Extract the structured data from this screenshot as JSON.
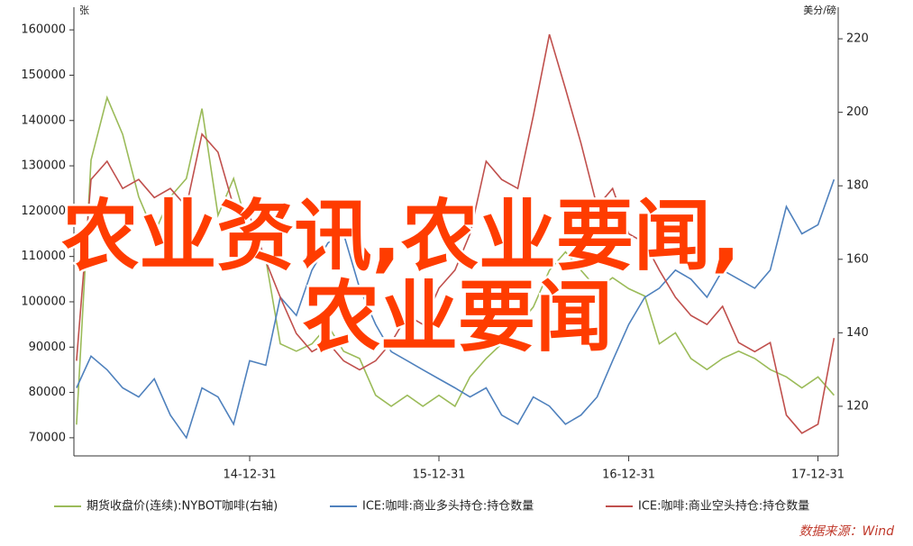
{
  "chart_data": {
    "type": "line",
    "y_unit": "张",
    "y2_unit": "美分/磅",
    "source": "数据来源：Wind",
    "overlay_text": [
      "农业资讯,农业要闻,",
      "农业要闻"
    ],
    "x": [
      "14-01-31",
      "14-02-28",
      "14-03-31",
      "14-04-30",
      "14-05-31",
      "14-06-30",
      "14-07-31",
      "14-08-31",
      "14-09-30",
      "14-10-31",
      "14-11-30",
      "14-12-31",
      "15-01-31",
      "15-02-28",
      "15-03-31",
      "15-04-30",
      "15-05-31",
      "15-06-30",
      "15-07-31",
      "15-08-31",
      "15-09-30",
      "15-10-31",
      "15-11-30",
      "15-12-31",
      "16-01-31",
      "16-02-29",
      "16-03-31",
      "16-04-30",
      "16-05-31",
      "16-06-30",
      "16-07-31",
      "16-08-31",
      "16-09-30",
      "16-10-31",
      "16-11-30",
      "16-12-31",
      "17-01-31",
      "17-02-28",
      "17-03-31",
      "17-04-30",
      "17-05-31",
      "17-06-30",
      "17-07-31",
      "17-08-31",
      "17-09-30",
      "17-10-31",
      "17-11-30",
      "17-12-31",
      "18-01-31"
    ],
    "xlim": [
      "14-01-26",
      "18-02-08"
    ],
    "xticks": [
      "14-12-31",
      "15-12-31",
      "16-12-31",
      "17-12-31"
    ],
    "ylim": [
      66000,
      165000
    ],
    "yticks": [
      70000,
      80000,
      90000,
      100000,
      110000,
      120000,
      130000,
      140000,
      150000,
      160000
    ],
    "y2lim": [
      106.5,
      228.6
    ],
    "y2ticks": [
      120,
      140,
      160,
      180,
      200,
      220
    ],
    "legend": "bottom",
    "series": [
      {
        "name": "期货收盘价(连续):NYBOT咖啡(右轴)",
        "color": "#9bbb59",
        "axis": "y2",
        "values": [
          115,
          187,
          204,
          194,
          177,
          167,
          177,
          182,
          201,
          172,
          182,
          167,
          160,
          137,
          135,
          137,
          142,
          135,
          133,
          123,
          120,
          123,
          120,
          123,
          120,
          128,
          133,
          137,
          142,
          147,
          157,
          162,
          157,
          152,
          155,
          152,
          150,
          137,
          140,
          133,
          130,
          133,
          135,
          133,
          130,
          128,
          125,
          128,
          123
        ]
      },
      {
        "name": "ICE:咖啡:商业多头持仓:持仓数量",
        "color": "#4f81bd",
        "values": [
          81000,
          88000,
          85000,
          81000,
          79000,
          83000,
          75000,
          70000,
          81000,
          79000,
          73000,
          87000,
          86000,
          101000,
          97000,
          107000,
          113000,
          115000,
          103000,
          95000,
          89000,
          87000,
          85000,
          83000,
          81000,
          79000,
          81000,
          75000,
          73000,
          79000,
          77000,
          73000,
          75000,
          79000,
          87000,
          95000,
          101000,
          103000,
          107000,
          105000,
          101000,
          107000,
          105000,
          103000,
          107000,
          121000,
          115000,
          117000,
          127000
        ]
      },
      {
        "name": "ICE:咖啡:商业空头持仓:持仓数量",
        "color": "#c0504d",
        "values": [
          87000,
          127000,
          131000,
          125000,
          127000,
          123000,
          125000,
          121000,
          137000,
          133000,
          121000,
          119000,
          109000,
          101000,
          93000,
          89000,
          91000,
          87000,
          85000,
          87000,
          91000,
          97000,
          95000,
          103000,
          107000,
          115000,
          131000,
          127000,
          125000,
          141000,
          159000,
          147000,
          135000,
          121000,
          125000,
          115000,
          113000,
          107000,
          101000,
          97000,
          95000,
          99000,
          91000,
          89000,
          91000,
          75000,
          71000,
          73000,
          92000
        ]
      }
    ]
  }
}
